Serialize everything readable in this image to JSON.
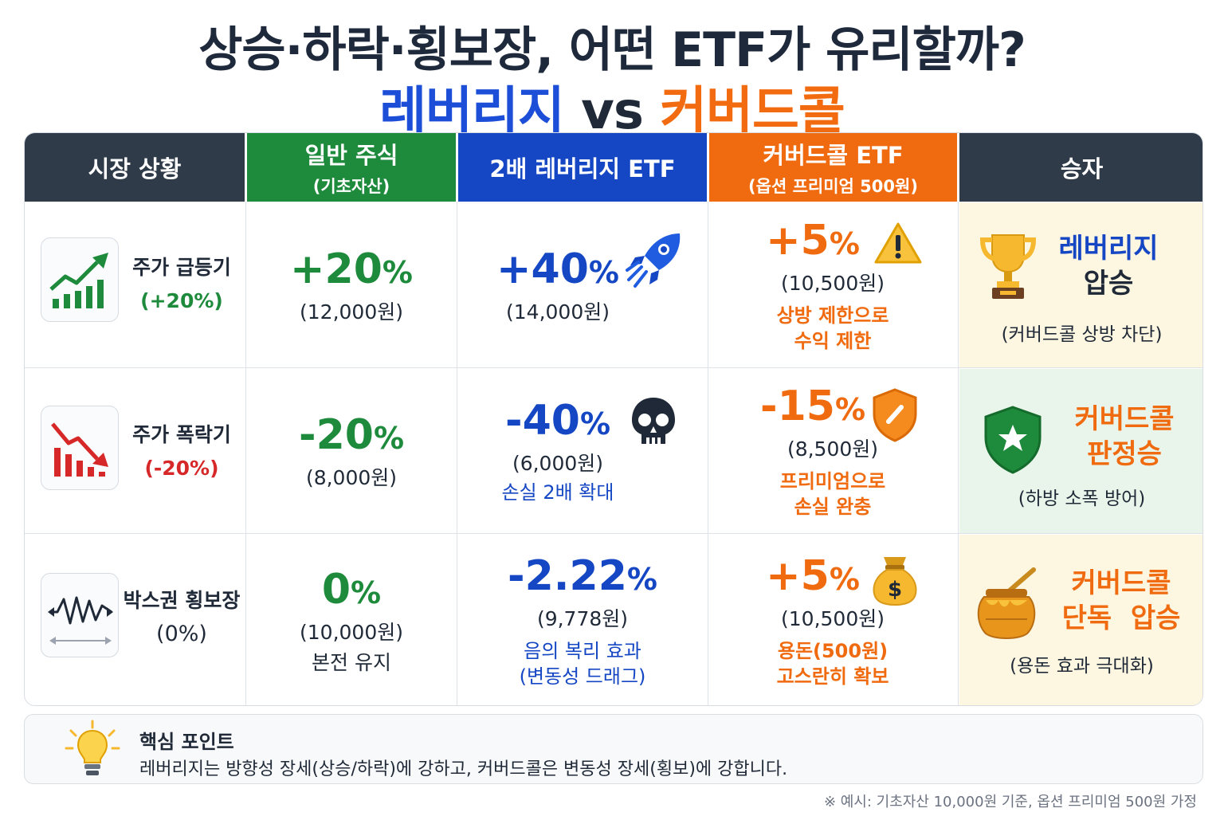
{
  "title": {
    "line1": "상승·하락·횡보장, 어떤 ETF가 유리할까?",
    "leverage": "레버리지",
    "vs": " vs ",
    "covered_call": "커버드콜"
  },
  "headers": {
    "market": "시장 상황",
    "stock": "일반 주식",
    "stock_sub": "(기초자산)",
    "leverage": "2배 레버리지 ETF",
    "covered_call": "커버드콜 ETF",
    "covered_call_sub": "(옵션 프리미엄 500원)",
    "winner": "승자"
  },
  "rows": [
    {
      "market_label": "주가 급등기",
      "market_pct": "(+20%)",
      "market_icon": "chart-up-icon",
      "stock_pct": "+20",
      "stock_price": "(12,000원)",
      "stock_note": "",
      "lev_pct": "+40",
      "lev_price": "(14,000원)",
      "lev_note1": "",
      "lev_note2": "",
      "lev_icon": "rocket-icon",
      "cc_pct": "+5",
      "cc_price": "(10,500원)",
      "cc_note1": "상방 제한으로",
      "cc_note2": "수익 제한",
      "cc_icon": "warning-icon",
      "winner_line1": "레버리지",
      "winner_line2": "압승",
      "winner_sub": "(커버드콜 상방 차단)",
      "winner_icon": "trophy-icon"
    },
    {
      "market_label": "주가 폭락기",
      "market_pct": "(-20%)",
      "market_icon": "chart-down-icon",
      "stock_pct": "-20",
      "stock_price": "(8,000원)",
      "stock_note": "",
      "lev_pct": "-40",
      "lev_price": "(6,000원)",
      "lev_note1": "손실 2배 확대",
      "lev_note2": "",
      "lev_icon": "skull-icon",
      "cc_pct": "-15",
      "cc_price": "(8,500원)",
      "cc_note1": "프리미엄으로",
      "cc_note2": "손실 완충",
      "cc_icon": "shield-icon",
      "winner_line1": "커버드콜",
      "winner_line2": "판정승",
      "winner_sub": "(하방 소폭 방어)",
      "winner_icon": "star-shield-icon"
    },
    {
      "market_label": "박스권 횡보장",
      "market_pct": "(0%)",
      "market_icon": "sideways-wave-icon",
      "stock_pct": "0",
      "stock_price": "(10,000원)",
      "stock_note": "본전 유지",
      "lev_pct": "-2.22",
      "lev_price": "(9,778원)",
      "lev_note1": "음의 복리 효과",
      "lev_note2": "(변동성 드래그)",
      "lev_icon": "",
      "cc_pct": "+5",
      "cc_price": "(10,500원)",
      "cc_note1": "용돈(500원)",
      "cc_note2": "고스란히 확보",
      "cc_icon": "money-bag-icon",
      "winner_line1": "커버드콜",
      "winner_line2": "단독  압승",
      "winner_sub": "(용돈 효과 극대화)",
      "winner_icon": "honey-pot-icon"
    }
  ],
  "pct_sign": "%",
  "key_point": {
    "title": "핵심 포인트",
    "text": "레버리지는 방향성 장세(상승/하락)에 강하고, 커버드콜은 변동성 장세(횡보)에 강합니다.",
    "icon": "lightbulb-icon"
  },
  "footnote": "※ 예시: 기초자산 10,000원 기준, 옵션 프리미엄 500원 가정",
  "colors": {
    "leverage": "#1547c4",
    "covered_call": "#f06a0f",
    "stock": "#1e8a3c",
    "header_dark": "#2f3b48",
    "winner_bg": "#fdf6e0",
    "winner_bg_green": "#e9f5ea"
  }
}
